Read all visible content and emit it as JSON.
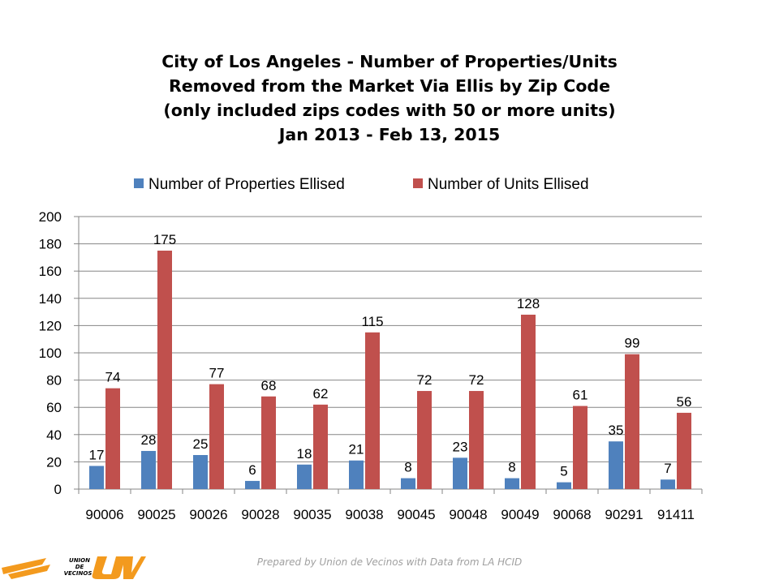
{
  "title_lines": [
    "City of Los Angeles - Number of  Properties/Units",
    "Removed from the Market Via Ellis by Zip Code",
    "(only included zips codes with 50 or more units)",
    "Jan 2013 - Feb 13, 2015"
  ],
  "footer": "Prepared by Union de Vecinos with Data from LA HCID",
  "logo": {
    "lines": [
      "UNION",
      "DE",
      "VECINOS"
    ],
    "mark": "UV",
    "color": "#f39a1e"
  },
  "chart_data": {
    "type": "bar",
    "title": "City of Los Angeles - Number of  Properties/Units Removed from the Market Via Ellis by Zip Code (only included zips codes with 50 or more units) Jan 2013 - Feb 13, 2015",
    "categories": [
      "90006",
      "90025",
      "90026",
      "90028",
      "90035",
      "90038",
      "90045",
      "90048",
      "90049",
      "90068",
      "90291",
      "91411"
    ],
    "series": [
      {
        "name": "Number of Properties Ellised",
        "color": "#4f81bd",
        "values": [
          17,
          28,
          25,
          6,
          18,
          21,
          8,
          23,
          8,
          5,
          35,
          7
        ]
      },
      {
        "name": "Number of Units Ellised",
        "color": "#c0504d",
        "values": [
          74,
          175,
          77,
          68,
          62,
          115,
          72,
          72,
          128,
          61,
          99,
          56
        ]
      }
    ],
    "yticks": [
      "0",
      "20",
      "40",
      "60",
      "80",
      "100",
      "120",
      "140",
      "160",
      "180",
      "200"
    ],
    "ylim": [
      0,
      200
    ],
    "grid": true,
    "legend_position": "top"
  }
}
